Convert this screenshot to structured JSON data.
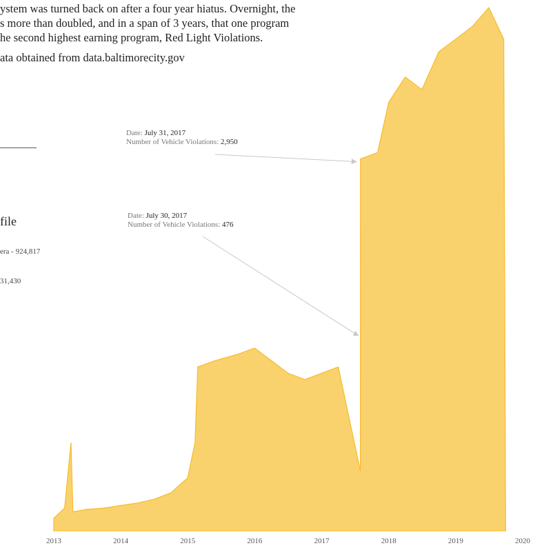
{
  "intro": {
    "line1": "ystem was turned back on after a four year hiatus. Overnight, the",
    "line2": "s more than doubled, and in a span of  3 years, that one program",
    "line3": "he second highest earning program, Red Light Violations.",
    "source": "ata obtained from data.baltimorecity.gov"
  },
  "sidebar": {
    "title": "file",
    "item1": "era - 924,817",
    "item2": "31,430"
  },
  "annotations": [
    {
      "date_label": "Date: ",
      "date": "July 31, 2017",
      "count_label": "Number of Vehicle Violations: ",
      "count": "2,950"
    },
    {
      "date_label": "Date: ",
      "date": "July 30, 2017",
      "count_label": "Number of Vehicle Violations: ",
      "count": "476"
    }
  ],
  "colors": {
    "fill": "#f9d26e",
    "stroke": "#f6bb2a",
    "annotation_line": "#c8c8c8"
  },
  "chart_data": {
    "type": "area",
    "xlabel": "",
    "ylabel": "",
    "x_ticks": [
      "2013",
      "2014",
      "2015",
      "2016",
      "2017",
      "2018",
      "2019",
      "2020"
    ],
    "xlim": [
      "2013-01-01",
      "2020-01-01"
    ],
    "ylim": [
      0,
      4200
    ],
    "grid": false,
    "series": [
      {
        "values_note_excluded": true,
        "points": [
          [
            "2013-01-01",
            100
          ],
          [
            "2013-03-01",
            180
          ],
          [
            "2013-04-05",
            700
          ],
          [
            "2013-04-15",
            150
          ],
          [
            "2013-07-01",
            170
          ],
          [
            "2013-10-01",
            180
          ],
          [
            "2014-01-01",
            200
          ],
          [
            "2014-04-01",
            220
          ],
          [
            "2014-07-01",
            250
          ],
          [
            "2014-10-01",
            300
          ],
          [
            "2015-01-01",
            420
          ],
          [
            "2015-02-10",
            700
          ],
          [
            "2015-02-25",
            1300
          ],
          [
            "2015-06-01",
            1350
          ],
          [
            "2015-10-01",
            1400
          ],
          [
            "2016-01-01",
            1450
          ],
          [
            "2016-04-01",
            1350
          ],
          [
            "2016-07-01",
            1250
          ],
          [
            "2016-10-01",
            1200
          ],
          [
            "2017-01-01",
            1250
          ],
          [
            "2017-04-01",
            1300
          ],
          [
            "2017-07-30",
            476
          ],
          [
            "2017-07-31",
            2950
          ],
          [
            "2017-11-01",
            3000
          ],
          [
            "2018-01-01",
            3400
          ],
          [
            "2018-04-01",
            3600
          ],
          [
            "2018-07-01",
            3500
          ],
          [
            "2018-10-01",
            3800
          ],
          [
            "2019-01-01",
            3900
          ],
          [
            "2019-04-01",
            4000
          ],
          [
            "2019-07-01",
            4150
          ],
          [
            "2019-09-20",
            3900
          ],
          [
            "2019-09-30",
            0
          ]
        ]
      }
    ]
  }
}
